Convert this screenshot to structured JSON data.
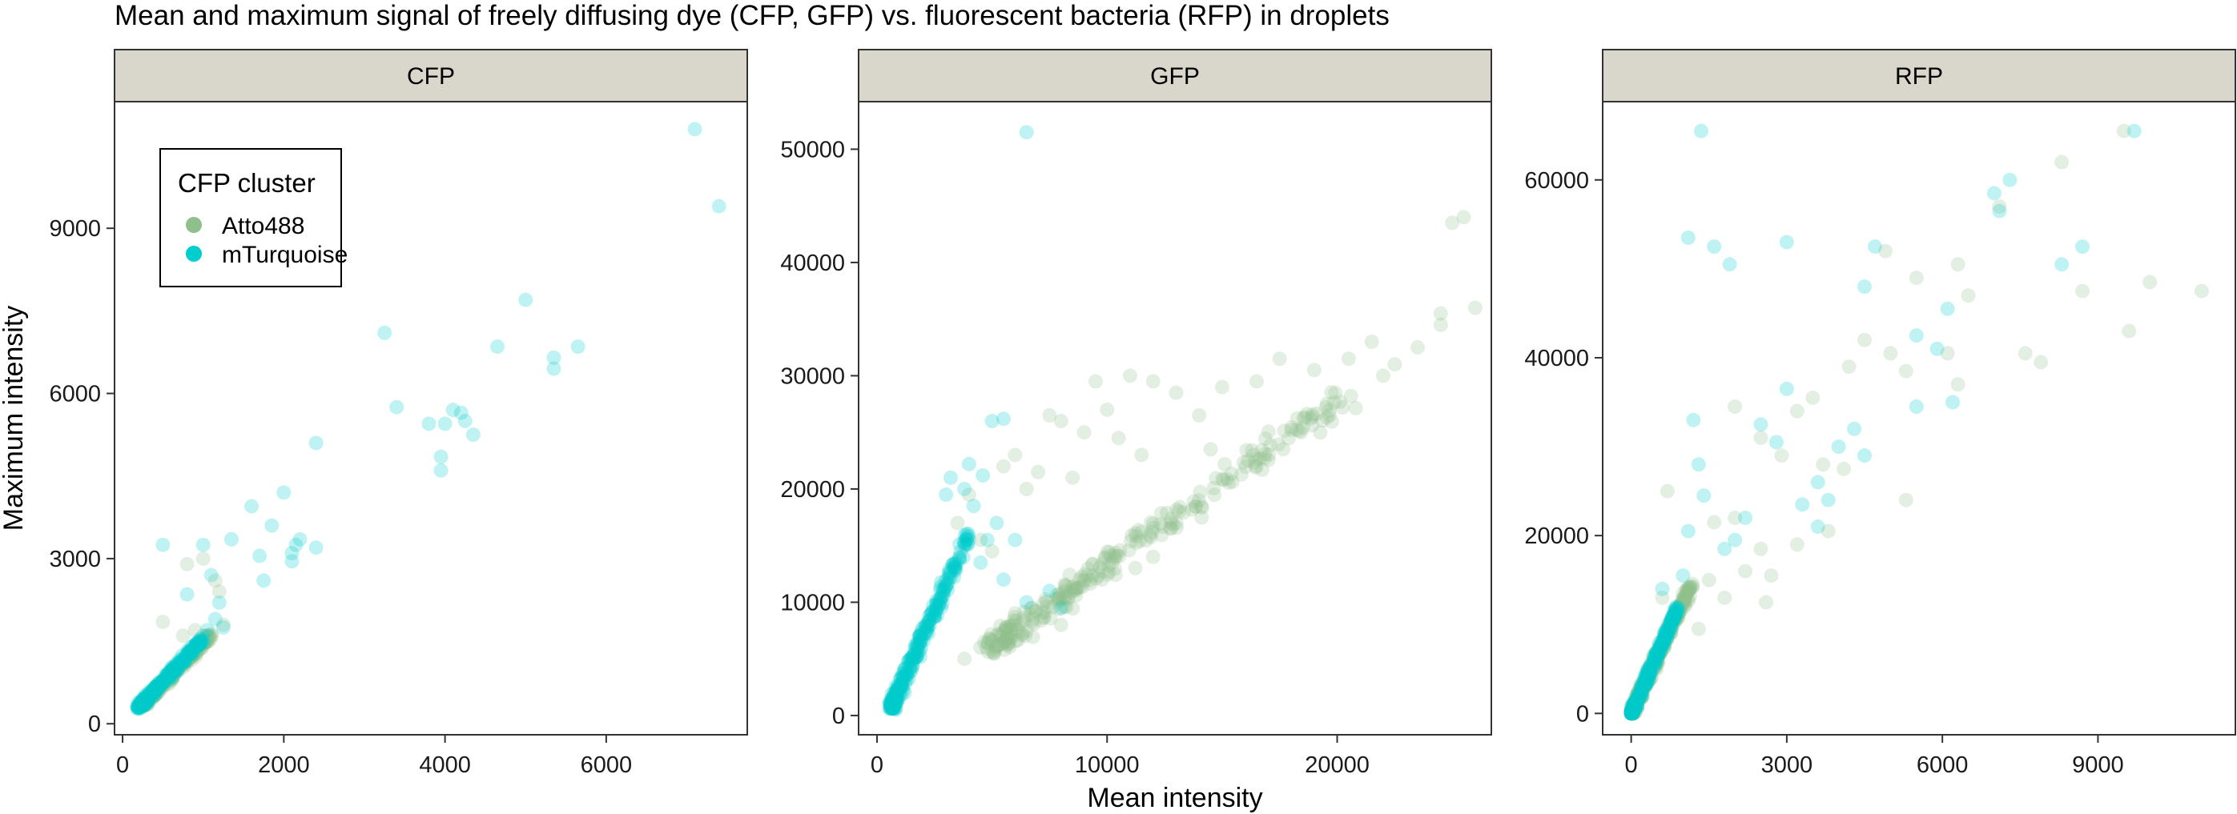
{
  "chart_data": {
    "type": "scatter",
    "title": "Mean and maximum signal of freely diffusing dye (CFP, GFP) vs. fluorescent bacteria (RFP) in droplets",
    "xlabel": "Mean intensity",
    "ylabel": "Maximum intensity",
    "legend": {
      "title": "CFP cluster",
      "placement": "top-left inside CFP panel",
      "entries": [
        {
          "name": "Atto488",
          "color": "#8fbf8c"
        },
        {
          "name": "mTurquoise",
          "color": "#00cdcd"
        }
      ]
    },
    "point_alpha": 0.25,
    "panels": [
      {
        "strip": "CFP",
        "xlim": [
          -100,
          7750
        ],
        "ylim": [
          -200,
          11300
        ],
        "x_ticks": [
          0,
          2000,
          4000,
          6000
        ],
        "y_ticks": [
          0,
          3000,
          6000,
          9000
        ],
        "series": [
          {
            "name": "Atto488",
            "bulk": {
              "x": [
                250,
                1100
              ],
              "y": [
                350,
                1600
              ]
            },
            "points": [
              [
                800,
                2900
              ],
              [
                1000,
                3000
              ],
              [
                1200,
                2400
              ],
              [
                1150,
                2600
              ],
              [
                500,
                1850
              ],
              [
                900,
                1700
              ],
              [
                1250,
                1800
              ],
              [
                750,
                1600
              ]
            ]
          },
          {
            "name": "mTurquoise",
            "bulk": {
              "x": [
                200,
                1000
              ],
              "y": [
                300,
                1550
              ]
            },
            "points": [
              [
                7100,
                10800
              ],
              [
                7400,
                9400
              ],
              [
                5000,
                7700
              ],
              [
                3250,
                7100
              ],
              [
                4650,
                6850
              ],
              [
                5650,
                6850
              ],
              [
                5350,
                6650
              ],
              [
                5350,
                6450
              ],
              [
                3400,
                5750
              ],
              [
                4100,
                5700
              ],
              [
                4200,
                5650
              ],
              [
                4250,
                5500
              ],
              [
                3800,
                5450
              ],
              [
                4000,
                5450
              ],
              [
                4350,
                5250
              ],
              [
                3950,
                4850
              ],
              [
                3950,
                4600
              ],
              [
                2400,
                5100
              ],
              [
                1600,
                3950
              ],
              [
                2000,
                4200
              ],
              [
                1350,
                3350
              ],
              [
                1000,
                3250
              ],
              [
                500,
                3250
              ],
              [
                1850,
                3600
              ],
              [
                2200,
                3350
              ],
              [
                2150,
                3250
              ],
              [
                2100,
                3100
              ],
              [
                2400,
                3200
              ],
              [
                1700,
                3050
              ],
              [
                2100,
                2950
              ],
              [
                1750,
                2600
              ],
              [
                800,
                2350
              ],
              [
                1100,
                2700
              ],
              [
                1200,
                2200
              ],
              [
                1150,
                1900
              ],
              [
                1250,
                1750
              ],
              [
                1000,
                1600
              ],
              [
                1050,
                1700
              ]
            ]
          }
        ]
      },
      {
        "strip": "GFP",
        "xlim": [
          -800,
          26700
        ],
        "ylim": [
          -1700,
          54200
        ],
        "x_ticks": [
          0,
          10000,
          20000
        ],
        "y_ticks": [
          0,
          10000,
          20000,
          30000,
          40000,
          50000
        ],
        "series": [
          {
            "name": "Atto488",
            "bulk": {
              "x": [
                5000,
                20500
              ],
              "y": [
                6000,
                28500
              ]
            },
            "points": [
              [
                25500,
                44000
              ],
              [
                25000,
                43500
              ],
              [
                24500,
                35500
              ],
              [
                26000,
                36000
              ],
              [
                24500,
                34500
              ],
              [
                23500,
                32500
              ],
              [
                22500,
                31000
              ],
              [
                21500,
                33000
              ],
              [
                20500,
                31500
              ],
              [
                22000,
                30000
              ],
              [
                7500,
                26500
              ],
              [
                8000,
                26000
              ],
              [
                9500,
                29500
              ],
              [
                11000,
                30000
              ],
              [
                12000,
                29500
              ],
              [
                13000,
                28500
              ],
              [
                9000,
                25000
              ],
              [
                10000,
                27000
              ],
              [
                15000,
                29000
              ],
              [
                16500,
                29500
              ],
              [
                17500,
                31500
              ],
              [
                19000,
                30500
              ],
              [
                5500,
                22000
              ],
              [
                6000,
                23000
              ],
              [
                6500,
                20000
              ],
              [
                7000,
                21500
              ],
              [
                8500,
                21000
              ],
              [
                10500,
                24500
              ],
              [
                11500,
                23000
              ],
              [
                14000,
                26500
              ],
              [
                3500,
                17000
              ],
              [
                4000,
                19500
              ],
              [
                4500,
                15500
              ],
              [
                5000,
                14500
              ],
              [
                3800,
                5000
              ],
              [
                4500,
                6000
              ],
              [
                6000,
                9000
              ],
              [
                8000,
                8000
              ],
              [
                12000,
                14000
              ],
              [
                14500,
                23500
              ]
            ]
          },
          {
            "name": "mTurquoise",
            "bulk": {
              "x": [
                600,
                4000
              ],
              "y": [
                700,
                16000
              ]
            },
            "points": [
              [
                6500,
                51500
              ],
              [
                5500,
                26200
              ],
              [
                5000,
                26000
              ],
              [
                4000,
                22200
              ],
              [
                4600,
                21200
              ],
              [
                3200,
                21000
              ],
              [
                3800,
                20000
              ],
              [
                5200,
                17000
              ],
              [
                4800,
                15500
              ],
              [
                6000,
                15500
              ],
              [
                7500,
                11000
              ],
              [
                6500,
                10000
              ],
              [
                8000,
                9500
              ],
              [
                5500,
                12000
              ],
              [
                4500,
                13500
              ],
              [
                800,
                500
              ],
              [
                1200,
                2000
              ],
              [
                3000,
                19500
              ],
              [
                4200,
                18500
              ]
            ]
          }
        ]
      },
      {
        "strip": "RFP",
        "xlim": [
          -550,
          11650
        ],
        "ylim": [
          -2400,
          68800
        ],
        "x_ticks": [
          0,
          3000,
          6000,
          9000
        ],
        "y_ticks": [
          0,
          20000,
          40000,
          60000
        ],
        "series": [
          {
            "name": "Atto488",
            "bulk": {
              "x": [
                0,
                1200
              ],
              "y": [
                0,
                15000
              ]
            },
            "points": [
              [
                9500,
                65500
              ],
              [
                8300,
                62000
              ],
              [
                7100,
                57000
              ],
              [
                6500,
                47000
              ],
              [
                5500,
                49000
              ],
              [
                4900,
                52000
              ],
              [
                6300,
                50500
              ],
              [
                8700,
                47500
              ],
              [
                9600,
                43000
              ],
              [
                10000,
                48500
              ],
              [
                11000,
                47500
              ],
              [
                7600,
                40500
              ],
              [
                7900,
                39500
              ],
              [
                4500,
                42000
              ],
              [
                4200,
                39000
              ],
              [
                3500,
                35500
              ],
              [
                3200,
                34000
              ],
              [
                2000,
                34500
              ],
              [
                2500,
                31000
              ],
              [
                2900,
                29000
              ],
              [
                3700,
                28000
              ],
              [
                4100,
                27500
              ],
              [
                5300,
                38500
              ],
              [
                6100,
                40500
              ],
              [
                6300,
                37000
              ],
              [
                5000,
                40500
              ],
              [
                5300,
                24000
              ],
              [
                3800,
                20500
              ],
              [
                3200,
                19000
              ],
              [
                2700,
                15500
              ],
              [
                2500,
                18500
              ],
              [
                2200,
                16000
              ],
              [
                2000,
                22000
              ],
              [
                1600,
                21500
              ],
              [
                1800,
                13000
              ],
              [
                1300,
                9500
              ],
              [
                900,
                11000
              ],
              [
                700,
                25000
              ],
              [
                600,
                13000
              ],
              [
                1000,
                13500
              ],
              [
                1500,
                15000
              ],
              [
                2600,
                12500
              ]
            ]
          },
          {
            "name": "mTurquoise",
            "bulk": {
              "x": [
                0,
                900
              ],
              "y": [
                0,
                12000
              ]
            },
            "points": [
              [
                1350,
                65500
              ],
              [
                1100,
                53500
              ],
              [
                1600,
                52500
              ],
              [
                1900,
                50500
              ],
              [
                3000,
                53000
              ],
              [
                4700,
                52500
              ],
              [
                4500,
                48000
              ],
              [
                5500,
                42500
              ],
              [
                5900,
                41000
              ],
              [
                6100,
                45500
              ],
              [
                7000,
                58500
              ],
              [
                7300,
                60000
              ],
              [
                7100,
                56500
              ],
              [
                8300,
                50500
              ],
              [
                8700,
                52500
              ],
              [
                9700,
                65500
              ],
              [
                6200,
                35000
              ],
              [
                5500,
                34500
              ],
              [
                4000,
                30000
              ],
              [
                4300,
                32000
              ],
              [
                4500,
                29000
              ],
              [
                3600,
                26000
              ],
              [
                3800,
                24000
              ],
              [
                3600,
                21000
              ],
              [
                3300,
                23500
              ],
              [
                3000,
                36500
              ],
              [
                2800,
                30500
              ],
              [
                2500,
                32500
              ],
              [
                2200,
                22000
              ],
              [
                2000,
                19500
              ],
              [
                1800,
                18500
              ],
              [
                1400,
                24500
              ],
              [
                1200,
                33000
              ],
              [
                1300,
                28000
              ],
              [
                1100,
                20500
              ],
              [
                1000,
                15500
              ],
              [
                900,
                11500
              ],
              [
                600,
                14000
              ],
              [
                700,
                8500
              ]
            ]
          }
        ]
      }
    ]
  }
}
